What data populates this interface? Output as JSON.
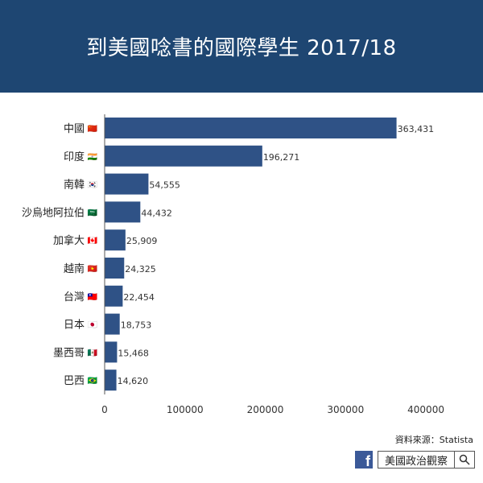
{
  "title": "到美國唸書的國際學生 2017/18",
  "source": "資料來源：Statista",
  "brand": {
    "name": "美國政治觀察",
    "fb_icon": "facebook-icon",
    "search_icon": "magnifier-icon",
    "fb_letter": "f"
  },
  "colors": {
    "header_bg": "#1e4672",
    "bar": "#2f5286",
    "axis": "#555555"
  },
  "chart_data": {
    "type": "bar",
    "orientation": "horizontal",
    "title": "到美國唸書的國際學生 2017/18",
    "categories": [
      "中國",
      "印度",
      "南韓",
      "沙烏地阿拉伯",
      "加拿大",
      "越南",
      "台灣",
      "日本",
      "墨西哥",
      "巴西"
    ],
    "flags": [
      "🇨🇳",
      "🇮🇳",
      "🇰🇷",
      "🇸🇦",
      "🇨🇦",
      "🇻🇳",
      "🇹🇼",
      "🇯🇵",
      "🇲🇽",
      "🇧🇷"
    ],
    "values": [
      363431,
      196271,
      54555,
      44432,
      25909,
      24325,
      22454,
      18753,
      15468,
      14620
    ],
    "value_labels": [
      "363,431",
      "196,271",
      "54,555",
      "44,432",
      "25,909",
      "24,325",
      "22,454",
      "18,753",
      "15,468",
      "14,620"
    ],
    "xticks": [
      0,
      100000,
      200000,
      300000,
      400000
    ],
    "xtick_labels": [
      "0",
      "100000",
      "200000",
      "300000",
      "400000"
    ],
    "xlim": [
      0,
      430000
    ],
    "grid": false
  }
}
